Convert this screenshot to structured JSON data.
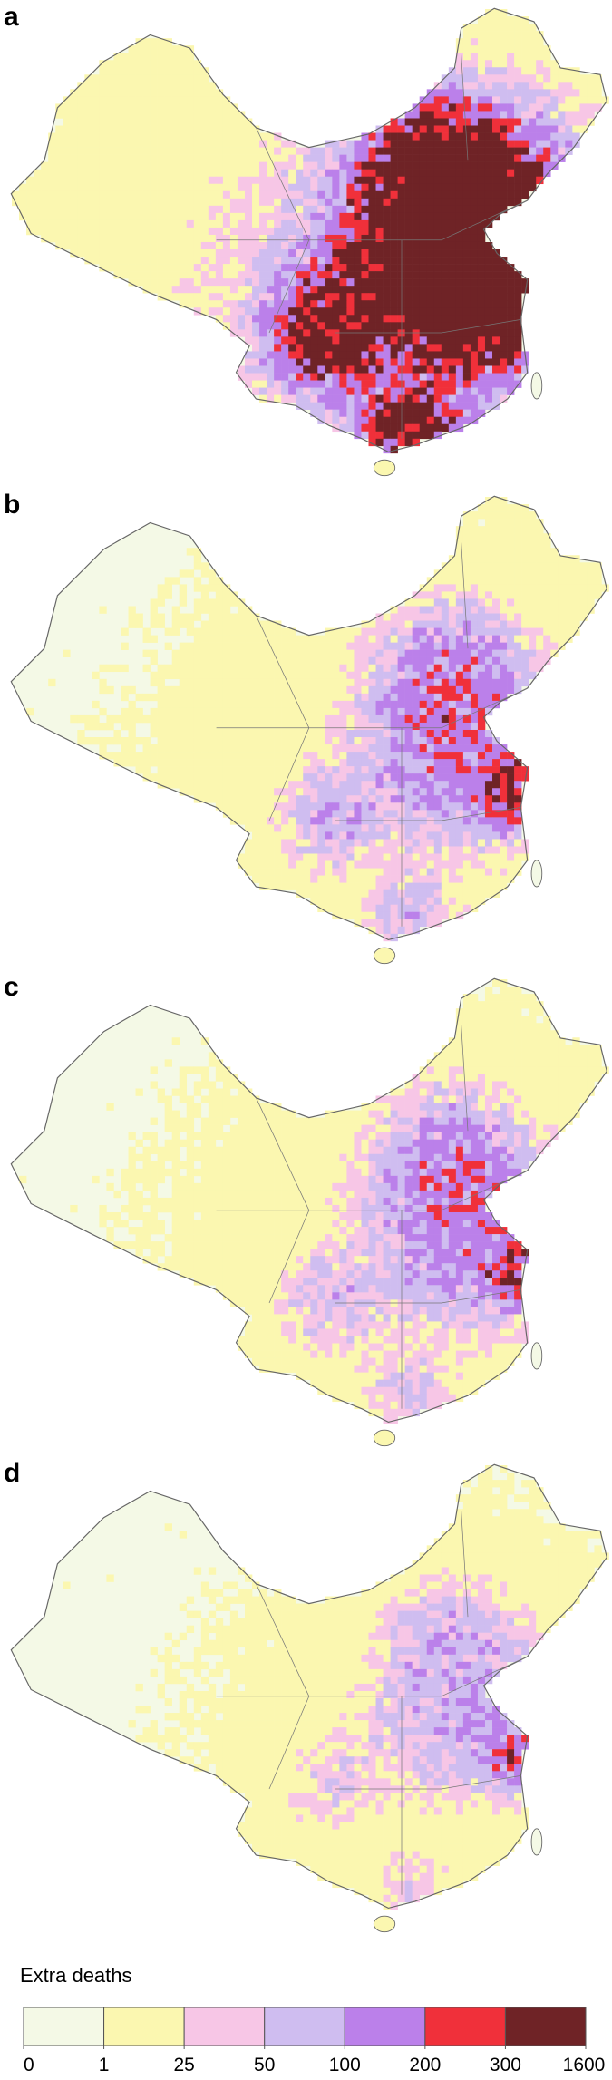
{
  "panels": [
    {
      "label": "a"
    },
    {
      "label": "b"
    },
    {
      "label": "c"
    },
    {
      "label": "d"
    }
  ],
  "legend": {
    "title": "Extra deaths",
    "ticks": [
      0,
      1,
      25,
      50,
      100,
      200,
      300,
      1600
    ],
    "colors": [
      "#f4f9e6",
      "#fbf7b0",
      "#f7c6e6",
      "#cfbdf0",
      "#bb80ea",
      "#f0303a",
      "#6f2326"
    ]
  }
}
